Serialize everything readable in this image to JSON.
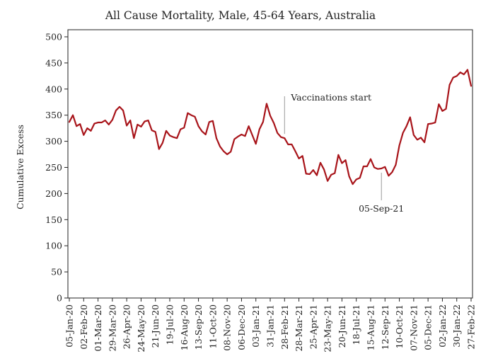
{
  "chart_data": {
    "type": "line",
    "title": "All Cause Mortality, Male, 45-64 Years, Australia",
    "xlabel": "",
    "ylabel": "Cumulative Excess",
    "ylim": [
      0,
      500
    ],
    "yticks": [
      0,
      50,
      100,
      150,
      200,
      250,
      300,
      350,
      400,
      450,
      500
    ],
    "grid": false,
    "x_tick_labels": [
      "05-Jan-20",
      "02-Feb-20",
      "01-Mar-20",
      "29-Mar-20",
      "26-Apr-20",
      "24-May-20",
      "21-Jun-20",
      "19-Jul-20",
      "16-Aug-20",
      "13-Sep-20",
      "11-Oct-20",
      "08-Nov-20",
      "06-Dec-20",
      "03-Jan-21",
      "31-Jan-21",
      "28-Feb-21",
      "28-Mar-21",
      "25-Apr-21",
      "23-May-21",
      "20-Jun-21",
      "18-Jul-21",
      "15-Aug-21",
      "12-Sep-21",
      "10-Oct-21",
      "07-Nov-21",
      "05-Dec-21",
      "02-Jan-22",
      "30-Jan-22",
      "27-Feb-22"
    ],
    "color": "#a8141a",
    "series": [
      {
        "values": [
          337,
          350,
          329,
          333,
          312,
          325,
          320,
          334,
          336,
          336,
          340,
          332,
          341,
          359,
          366,
          359,
          330,
          340,
          306,
          332,
          328,
          338,
          340,
          321,
          318,
          285,
          297,
          320,
          311,
          308,
          306,
          323,
          326,
          354,
          350,
          347,
          329,
          319,
          313,
          337,
          339,
          306,
          290,
          281,
          275,
          280,
          304,
          309,
          313,
          310,
          329,
          312,
          295,
          323,
          337,
          372,
          349,
          335,
          316,
          308,
          306,
          294,
          294,
          281,
          267,
          272,
          238,
          237,
          245,
          235,
          259,
          246,
          224,
          236,
          239,
          274,
          258,
          264,
          233,
          218,
          227,
          230,
          252,
          252,
          266,
          250,
          247,
          248,
          251,
          234,
          241,
          255,
          292,
          316,
          329,
          346,
          312,
          303,
          307,
          298,
          333,
          334,
          336,
          371,
          358,
          362,
          408,
          422,
          425,
          432,
          428,
          437,
          406
        ]
      }
    ],
    "annotations": [
      {
        "text": "Vaccinations start",
        "x_index": 60,
        "y": 306
      },
      {
        "text": "05-Sep-21",
        "x_index": 87,
        "y": 248
      }
    ]
  }
}
